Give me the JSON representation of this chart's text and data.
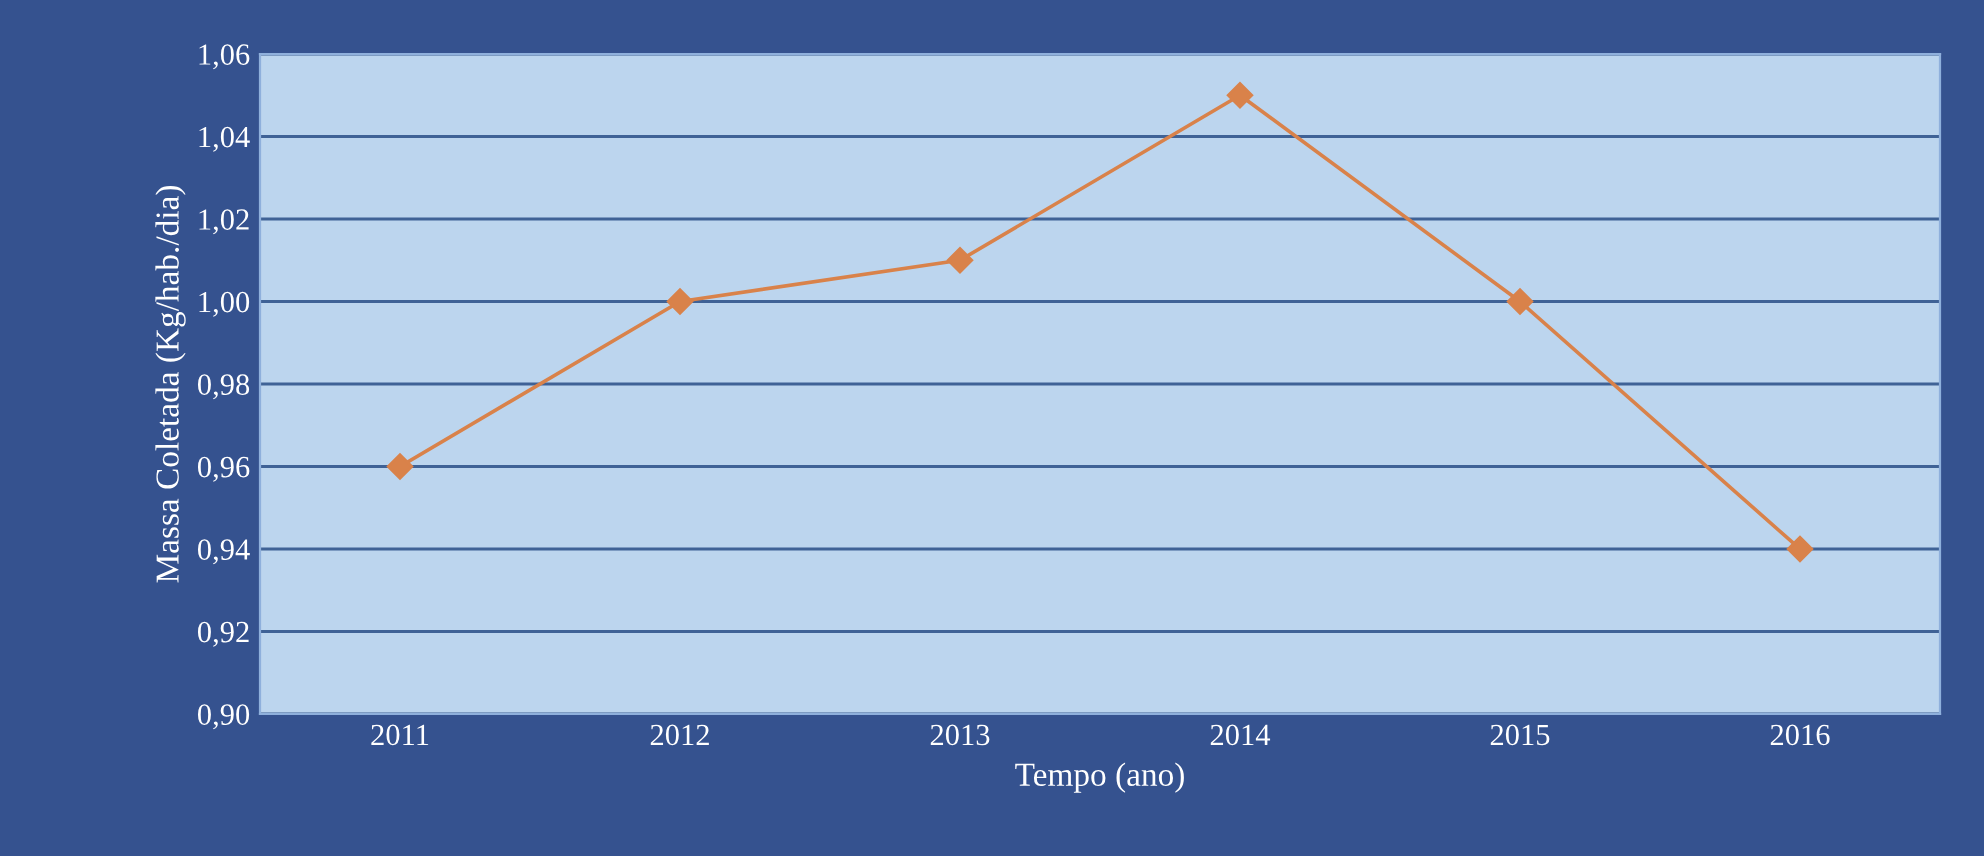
{
  "chart_data": {
    "type": "line",
    "xlabel": "Tempo (ano)",
    "ylabel": "Massa Coletada (Kg/hab./dia)",
    "categories": [
      "2011",
      "2012",
      "2013",
      "2014",
      "2015",
      "2016"
    ],
    "series": [
      {
        "color": "#d9824a",
        "values": [
          0.96,
          1.0,
          1.01,
          1.05,
          1.0,
          0.94
        ]
      }
    ],
    "ylim": [
      0.9,
      1.06
    ],
    "yticks": [
      {
        "value": 0.9,
        "label": "0,90"
      },
      {
        "value": 0.92,
        "label": "0,92"
      },
      {
        "value": 0.94,
        "label": "0,94"
      },
      {
        "value": 0.96,
        "label": "0,96"
      },
      {
        "value": 0.98,
        "label": "0,98"
      },
      {
        "value": 1.0,
        "label": "1,00"
      },
      {
        "value": 1.02,
        "label": "1,02"
      },
      {
        "value": 1.04,
        "label": "1,04"
      },
      {
        "value": 1.06,
        "label": "1,06"
      }
    ],
    "grid": "y",
    "marker": "diamond",
    "line_style": "solid"
  }
}
